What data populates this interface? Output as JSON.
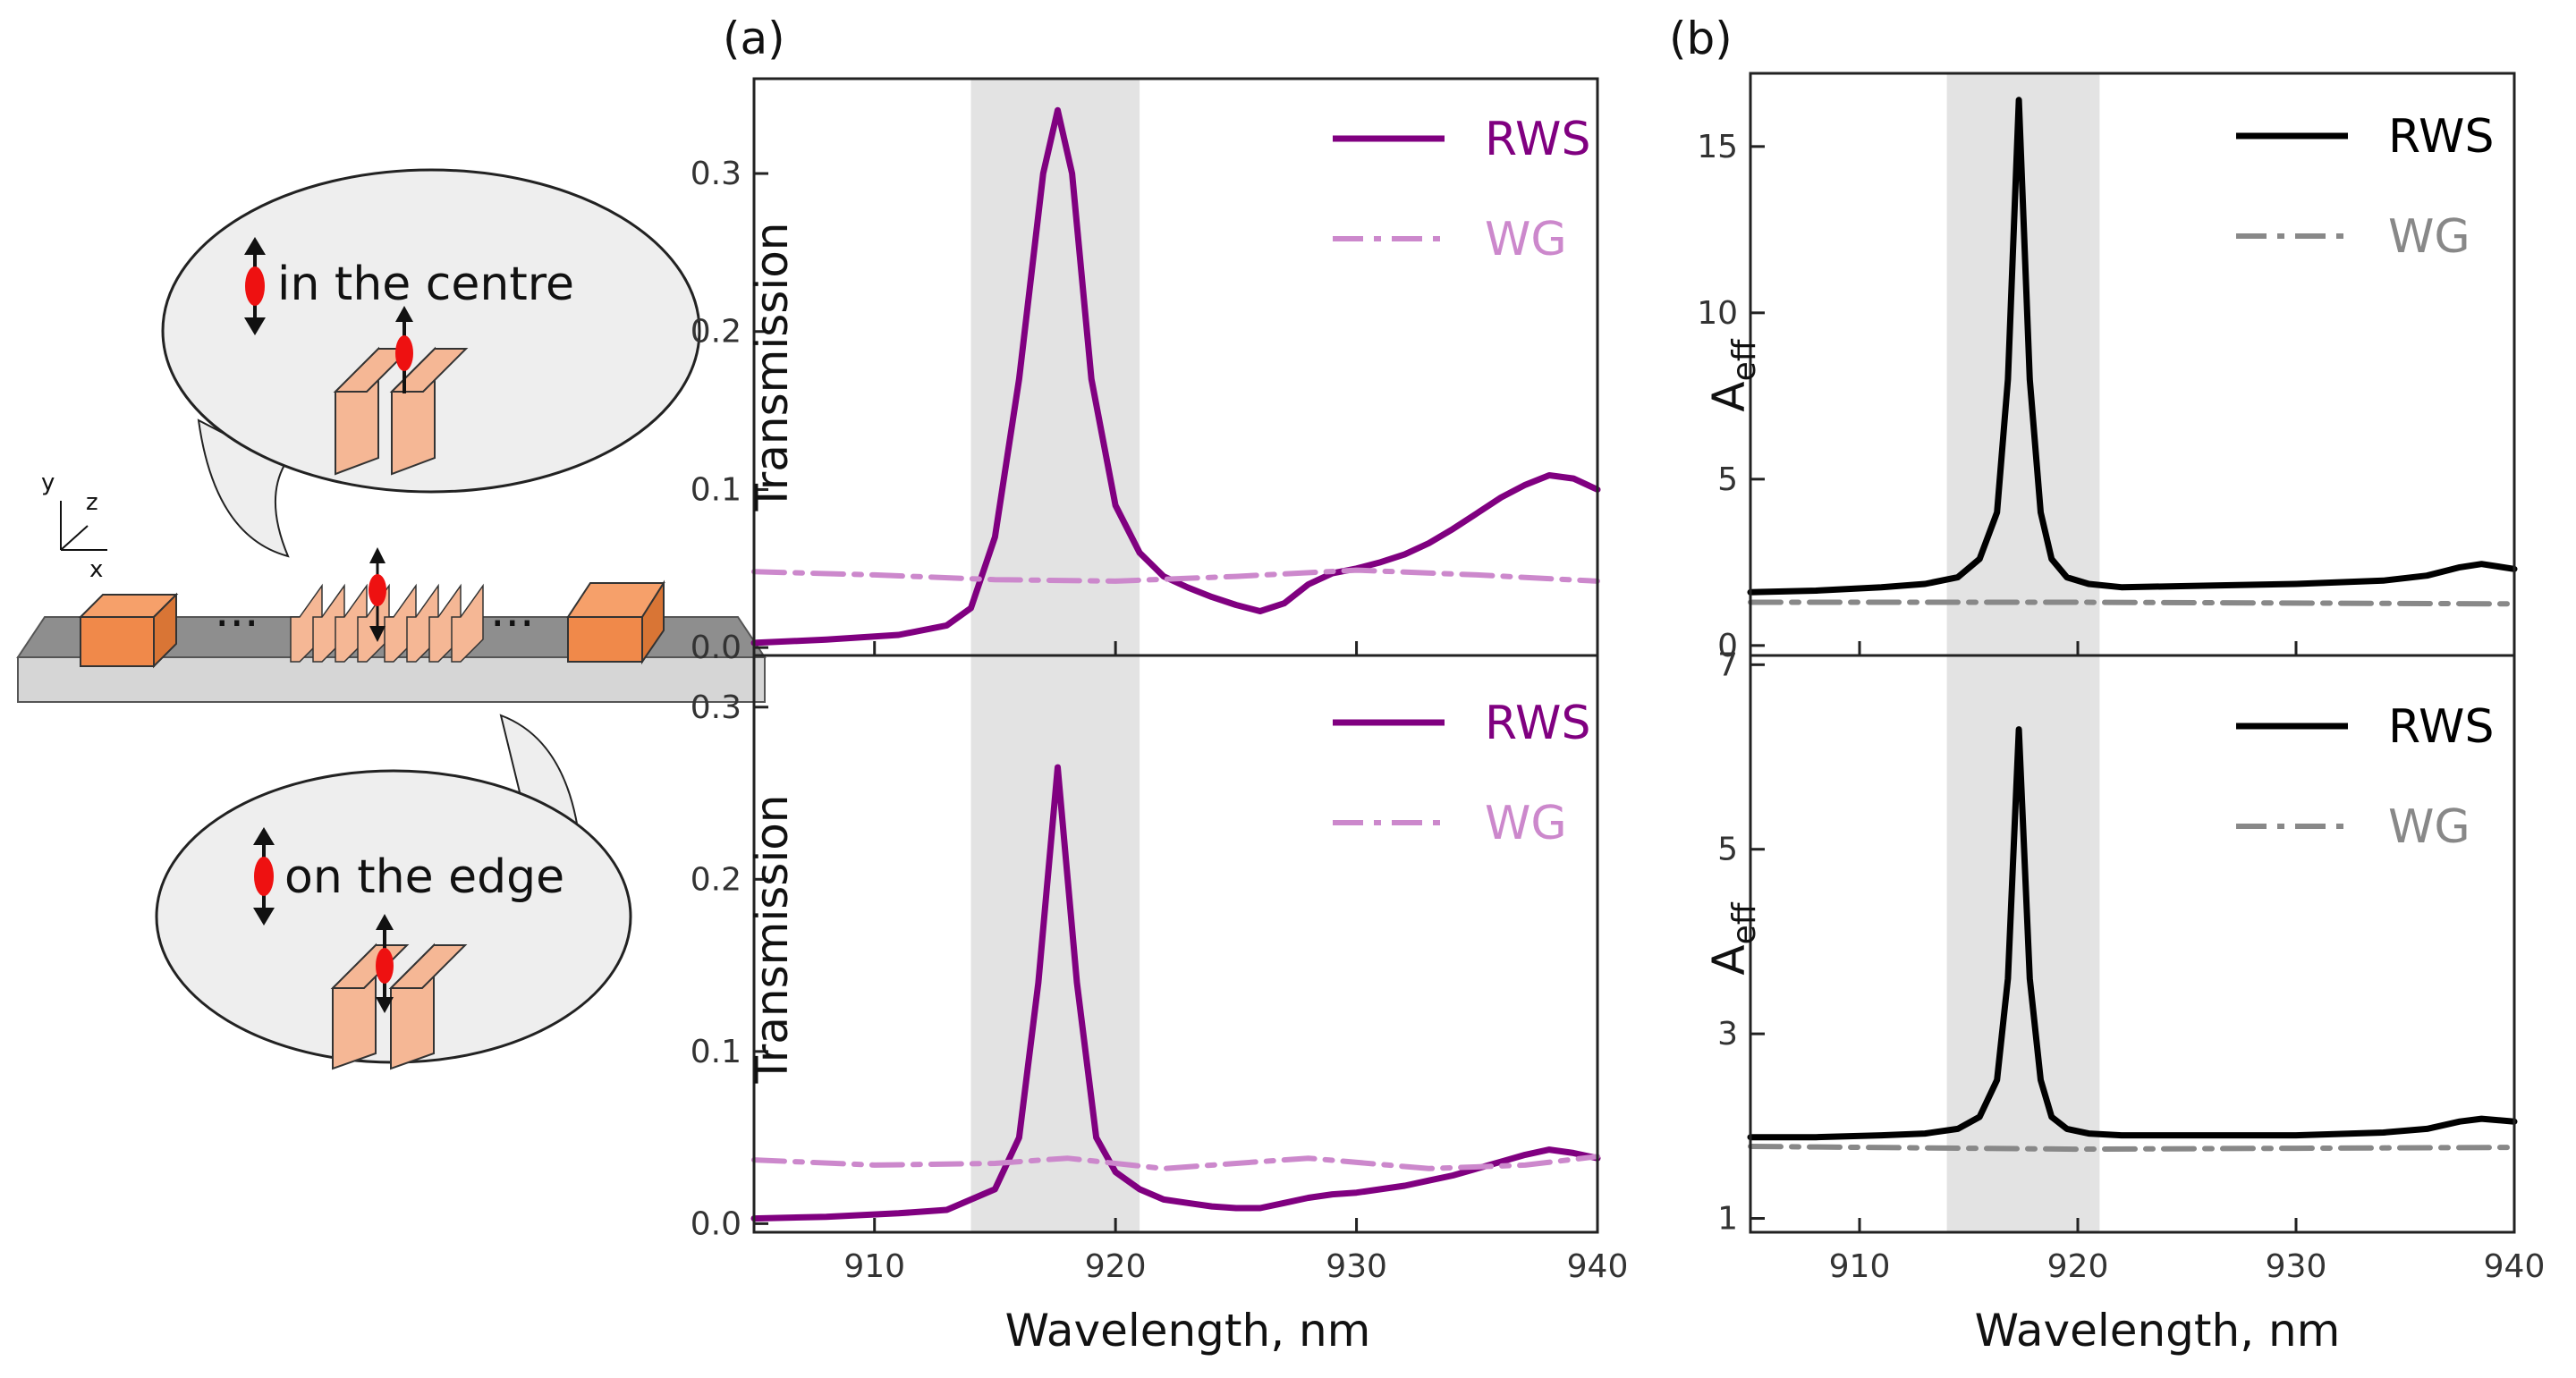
{
  "panels": {
    "a_label": "(a)",
    "b_label": "(b)"
  },
  "schematic": {
    "bubble_top_text": "in the centre",
    "bubble_bottom_text": "on the edge",
    "dots_left": "···",
    "dots_right": "···",
    "axes": {
      "y": "y",
      "z": "z",
      "x": "x"
    }
  },
  "colors": {
    "rws_purple": "#800080",
    "wg_purple": "#CC88CC",
    "rws_black": "#000000",
    "wg_gray": "#888888",
    "band": "#E3E3E3",
    "block": "#F0894A"
  },
  "chart_data": [
    {
      "id": "a-top",
      "type": "line",
      "xlabel": "Wavelength, nm",
      "ylabel": "Transmission",
      "xlim": [
        905,
        940
      ],
      "ylim": [
        -0.005,
        0.36
      ],
      "xticks": [
        910,
        920,
        930,
        940
      ],
      "show_xticklabels": false,
      "yticks": [
        0.0,
        0.1,
        0.2,
        0.3
      ],
      "ytick_labels": [
        "0.0",
        "0.1",
        "0.2",
        "0.3"
      ],
      "shaded_band": [
        914,
        921
      ],
      "legend": {
        "position": "top-right",
        "entries": [
          "RWS",
          "WG"
        ]
      },
      "series": [
        {
          "name": "RWS",
          "style": "solid",
          "color": "#800080",
          "x": [
            905,
            908,
            911,
            913,
            914,
            915,
            916,
            917,
            917.6,
            918.2,
            919,
            920,
            921,
            922,
            923,
            924,
            925,
            926,
            927,
            928,
            929,
            930,
            931,
            932,
            933,
            934,
            935,
            936,
            937,
            938,
            939,
            940
          ],
          "y": [
            0.003,
            0.005,
            0.008,
            0.014,
            0.025,
            0.07,
            0.17,
            0.3,
            0.34,
            0.3,
            0.17,
            0.09,
            0.06,
            0.045,
            0.038,
            0.032,
            0.027,
            0.023,
            0.028,
            0.04,
            0.047,
            0.05,
            0.054,
            0.059,
            0.066,
            0.075,
            0.085,
            0.095,
            0.103,
            0.109,
            0.107,
            0.1
          ]
        },
        {
          "name": "WG",
          "style": "dashdot",
          "color": "#CC88CC",
          "x": [
            905,
            910,
            915,
            920,
            925,
            930,
            935,
            940
          ],
          "y": [
            0.048,
            0.046,
            0.043,
            0.042,
            0.045,
            0.049,
            0.046,
            0.042
          ]
        }
      ]
    },
    {
      "id": "a-bottom",
      "type": "line",
      "xlabel": "Wavelength, nm",
      "ylabel": "Transmission",
      "xlim": [
        905,
        940
      ],
      "ylim": [
        -0.005,
        0.33
      ],
      "xticks": [
        910,
        920,
        930,
        940
      ],
      "xtick_labels": [
        "910",
        "920",
        "930",
        "940"
      ],
      "show_xticklabels": true,
      "yticks": [
        0.0,
        0.1,
        0.2,
        0.3
      ],
      "ytick_labels": [
        "0.0",
        "0.1",
        "0.2",
        "0.3"
      ],
      "shaded_band": [
        914,
        921
      ],
      "legend": {
        "position": "top-right",
        "entries": [
          "RWS",
          "WG"
        ]
      },
      "series": [
        {
          "name": "RWS",
          "style": "solid",
          "color": "#800080",
          "x": [
            905,
            908,
            911,
            913,
            915,
            916,
            916.8,
            917.6,
            918.4,
            919.2,
            920,
            921,
            922,
            923,
            924,
            925,
            926,
            927,
            928,
            929,
            930,
            931,
            932,
            933,
            934,
            935,
            936,
            937,
            938,
            939,
            940
          ],
          "y": [
            0.003,
            0.004,
            0.006,
            0.008,
            0.02,
            0.05,
            0.14,
            0.265,
            0.14,
            0.05,
            0.03,
            0.02,
            0.014,
            0.012,
            0.01,
            0.009,
            0.009,
            0.012,
            0.015,
            0.017,
            0.018,
            0.02,
            0.022,
            0.025,
            0.028,
            0.032,
            0.036,
            0.04,
            0.043,
            0.041,
            0.038
          ]
        },
        {
          "name": "WG",
          "style": "dashdot",
          "color": "#CC88CC",
          "x": [
            905,
            910,
            915,
            918,
            922,
            928,
            933,
            937,
            940
          ],
          "y": [
            0.037,
            0.034,
            0.035,
            0.038,
            0.032,
            0.038,
            0.032,
            0.034,
            0.039
          ]
        }
      ]
    },
    {
      "id": "b-top",
      "type": "line",
      "xlabel": "Wavelength, nm",
      "ylabel": "A",
      "ylabel_sub": "eff",
      "xlim": [
        905,
        940
      ],
      "ylim": [
        -0.3,
        17.2
      ],
      "xticks": [
        910,
        920,
        930,
        940
      ],
      "show_xticklabels": false,
      "yticks": [
        0,
        5,
        10,
        15
      ],
      "ytick_labels": [
        "0",
        "5",
        "10",
        "15"
      ],
      "shaded_band": [
        914,
        921
      ],
      "legend": {
        "position": "top-right",
        "entries": [
          "RWS",
          "WG"
        ]
      },
      "series": [
        {
          "name": "RWS",
          "style": "solid",
          "color": "#000000",
          "x": [
            905,
            908,
            911,
            913,
            914.5,
            915.5,
            916.3,
            916.8,
            917.3,
            917.8,
            918.3,
            918.8,
            919.5,
            920.5,
            922,
            926,
            930,
            934,
            936,
            937.5,
            938.5,
            940
          ],
          "y": [
            1.6,
            1.65,
            1.75,
            1.85,
            2.05,
            2.6,
            4.0,
            8.0,
            16.4,
            8.0,
            4.0,
            2.6,
            2.05,
            1.85,
            1.75,
            1.8,
            1.85,
            1.95,
            2.1,
            2.35,
            2.45,
            2.3
          ]
        },
        {
          "name": "WG",
          "style": "dashdot",
          "color": "#888888",
          "x": [
            905,
            920,
            940
          ],
          "y": [
            1.3,
            1.3,
            1.25
          ]
        }
      ]
    },
    {
      "id": "b-bottom",
      "type": "line",
      "xlabel": "Wavelength, nm",
      "ylabel": "A",
      "ylabel_sub": "eff",
      "xlim": [
        905,
        940
      ],
      "ylim": [
        0.85,
        7.1
      ],
      "xticks": [
        910,
        920,
        930,
        940
      ],
      "xtick_labels": [
        "910",
        "920",
        "930",
        "940"
      ],
      "show_xticklabels": true,
      "yticks": [
        1,
        3,
        5,
        7
      ],
      "ytick_labels": [
        "1",
        "3",
        "5",
        "7"
      ],
      "shaded_band": [
        914,
        921
      ],
      "legend": {
        "position": "top-right",
        "entries": [
          "RWS",
          "WG"
        ]
      },
      "series": [
        {
          "name": "RWS",
          "style": "solid",
          "color": "#000000",
          "x": [
            905,
            908,
            911,
            913,
            914.5,
            915.5,
            916.3,
            916.8,
            917.3,
            917.8,
            918.3,
            918.8,
            919.5,
            920.5,
            922,
            926,
            930,
            934,
            936,
            937.5,
            938.5,
            940
          ],
          "y": [
            1.88,
            1.88,
            1.9,
            1.92,
            1.97,
            2.1,
            2.5,
            3.6,
            6.3,
            3.6,
            2.5,
            2.1,
            1.97,
            1.92,
            1.9,
            1.9,
            1.9,
            1.93,
            1.97,
            2.05,
            2.08,
            2.05
          ]
        },
        {
          "name": "WG",
          "style": "dashdot",
          "color": "#888888",
          "x": [
            905,
            915,
            920,
            930,
            940
          ],
          "y": [
            1.78,
            1.76,
            1.75,
            1.76,
            1.77
          ]
        }
      ]
    }
  ]
}
